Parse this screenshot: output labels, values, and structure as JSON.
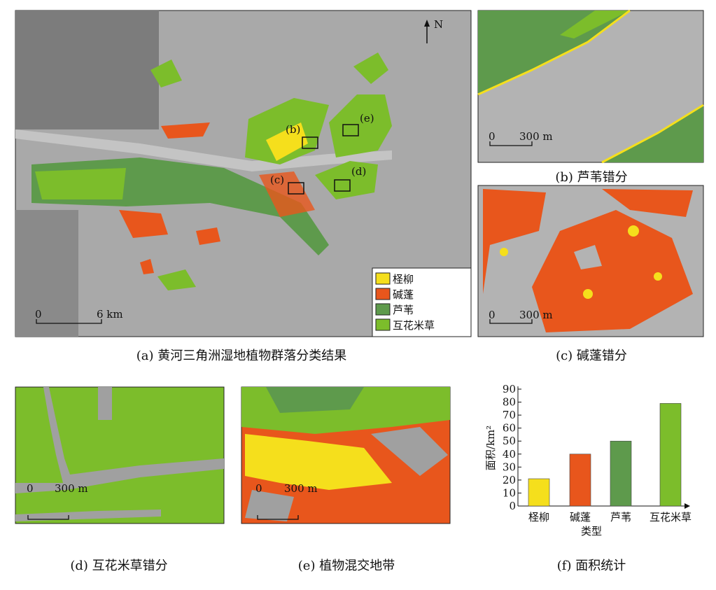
{
  "panels": {
    "a": {
      "caption": "(a) 黄河三角洲湿地植物群落分类结果",
      "north": "N",
      "scale_labels": [
        "0",
        "6 km"
      ],
      "box_labels": [
        "(b)",
        "(e)",
        "(c)",
        "(d)"
      ],
      "legend": [
        {
          "name": "柽柳",
          "color": "#f5df1c"
        },
        {
          "name": "碱蓬",
          "color": "#e8561c"
        },
        {
          "name": "芦苇",
          "color": "#5e9a4c"
        },
        {
          "name": "互花米草",
          "color": "#7cbd2b"
        }
      ]
    },
    "b": {
      "caption": "(b) 芦苇错分",
      "scale_labels": [
        "0",
        "300 m"
      ]
    },
    "c": {
      "caption": "(c) 碱蓬错分",
      "scale_labels": [
        "0",
        "300 m"
      ]
    },
    "d": {
      "caption": "(d) 互花米草错分",
      "scale_labels": [
        "0",
        "300 m"
      ]
    },
    "e": {
      "caption": "(e) 植物混交地带",
      "scale_labels": [
        "0",
        "300 m"
      ]
    }
  },
  "chart_data": {
    "type": "bar",
    "caption": "(f) 面积统计",
    "x_label": "类型",
    "y_label": "面积/km²",
    "categories": [
      "柽柳",
      "碱蓬",
      "芦苇",
      "互花米草"
    ],
    "values": [
      21,
      40,
      50,
      79
    ],
    "colors": [
      "#f5df1c",
      "#e8561c",
      "#5e9a4c",
      "#7cbd2b"
    ],
    "ylim": [
      0,
      90
    ],
    "yticks": [
      0,
      10,
      20,
      30,
      40,
      50,
      60,
      70,
      80,
      90
    ]
  }
}
